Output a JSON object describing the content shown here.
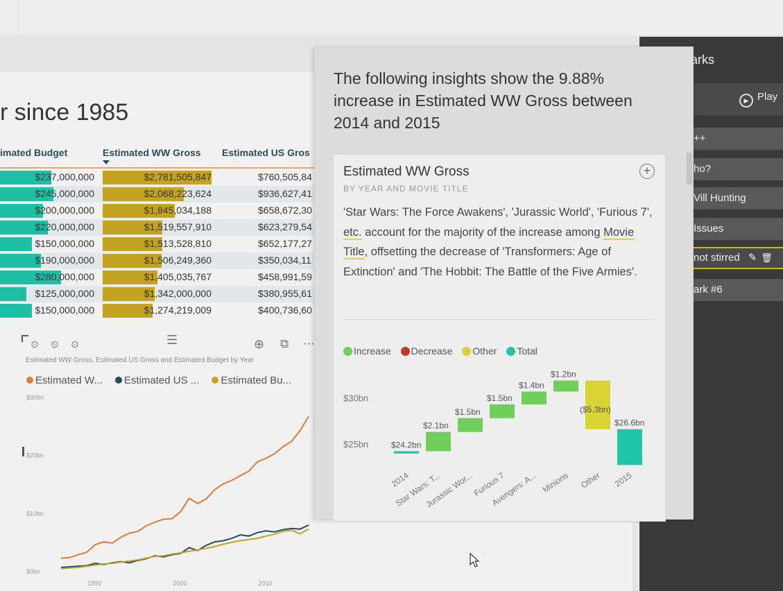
{
  "report": {
    "page_title": "r since 1985",
    "table": {
      "headers": [
        "imated Budget",
        "Estimated WW Gross",
        "Estimated US Gros"
      ],
      "rows": [
        {
          "budget": "$237,000,000",
          "ww": "$2,781,505,847",
          "us": "$760,505,84"
        },
        {
          "budget": "$245,000,000",
          "ww": "$2,068,223,624",
          "us": "$936,627,41"
        },
        {
          "budget": "$200,000,000",
          "ww": "$1,845,034,188",
          "us": "$658,672,30"
        },
        {
          "budget": "$220,000,000",
          "ww": "$1,519,557,910",
          "us": "$623,279,54"
        },
        {
          "budget": "$150,000,000",
          "ww": "$1,513,528,810",
          "us": "$652,177,27"
        },
        {
          "budget": "$190,000,000",
          "ww": "$1,506,249,360",
          "us": "$350,034,11"
        },
        {
          "budget": "$280,000,000",
          "ww": "$1,405,035,767",
          "us": "$458,991,59"
        },
        {
          "budget": "$125,000,000",
          "ww": "$1,342,000,000",
          "us": "$380,955,61"
        },
        {
          "budget": "$150,000,000",
          "ww": "$1,274,219,009",
          "us": "$400,736,60"
        }
      ],
      "budget_bar_fractions": [
        0.29,
        0.3,
        0.245,
        0.27,
        0.18,
        0.23,
        0.345,
        0.15,
        0.18
      ],
      "ww_bar_fractions": [
        1.0,
        0.745,
        0.665,
        0.545,
        0.545,
        0.54,
        0.505,
        0.48,
        0.46
      ]
    },
    "line_chart": {
      "subtitle": "Estimated WW Gross, Estimated US Gross and Estimated Budget by Year",
      "legend": [
        {
          "label": "Estimated W...",
          "color": "#e07b39"
        },
        {
          "label": "Estimated US ...",
          "color": "#1f4e5a"
        },
        {
          "label": "Estimated Bu...",
          "color": "#c2a322"
        }
      ]
    }
  },
  "bookmarks": {
    "title": "arks",
    "play_label": "Play",
    "items": [
      "++",
      "ho?",
      "Vill Hunting",
      "Issues",
      "not stirred",
      "ark #6"
    ],
    "active_index": 4
  },
  "insights": {
    "heading": "The following insights show the 9.88% increase in Estimated WW Gross between 2014 and 2015",
    "card": {
      "title": "Estimated WW Gross",
      "subtitle": "BY YEAR AND MOVIE TITLE",
      "desc_parts": [
        "'Star Wars: The Force Awakens', 'Jurassic World', 'Furious 7', ",
        "etc.",
        " account for the majority of the increase among ",
        "Movie Title",
        ", offsetting the decrease of 'Transformers: Age of Extinction' and 'The Hobbit: The Battle of the Five Armies'."
      ]
    }
  },
  "chart_data": [
    {
      "type": "line",
      "title": "Estimated WW Gross, Estimated US Gross and Estimated Budget by Year",
      "xlabel": "",
      "ylabel": "",
      "x_ticks": [
        1990,
        2000,
        2010
      ],
      "y_ticks": [
        "$0bn",
        "$10bn",
        "$20bn",
        "$30bn"
      ],
      "ylim": [
        0,
        30
      ],
      "xlim": [
        1985,
        2015
      ],
      "series": [
        {
          "name": "Estimated W...",
          "color": "#e07b39",
          "x": [
            1986,
            1987,
            1988,
            1989,
            1990,
            1991,
            1992,
            1993,
            1994,
            1995,
            1996,
            1997,
            1998,
            1999,
            2000,
            2001,
            2002,
            2003,
            2004,
            2005,
            2006,
            2007,
            2008,
            2009,
            2010,
            2011,
            2012,
            2013,
            2014,
            2015
          ],
          "values": [
            2.2,
            2.3,
            2.8,
            3.2,
            4.5,
            5.0,
            4.8,
            5.8,
            6.5,
            6.8,
            7.8,
            8.4,
            8.9,
            9.0,
            10.2,
            12.5,
            11.6,
            12.4,
            14.0,
            15.0,
            15.6,
            16.4,
            17.2,
            18.8,
            19.4,
            20.2,
            21.4,
            22.3,
            24.2,
            26.6
          ]
        },
        {
          "name": "Estimated US ...",
          "color": "#1f4e5a",
          "x": [
            1986,
            1987,
            1988,
            1989,
            1990,
            1991,
            1992,
            1993,
            1994,
            1995,
            1996,
            1997,
            1998,
            1999,
            2000,
            2001,
            2002,
            2003,
            2004,
            2005,
            2006,
            2007,
            2008,
            2009,
            2010,
            2011,
            2012,
            2013,
            2014,
            2015
          ],
          "values": [
            0.6,
            0.7,
            0.8,
            0.9,
            1.3,
            1.1,
            1.4,
            1.6,
            1.4,
            1.8,
            2.1,
            2.6,
            2.4,
            2.8,
            3.0,
            4.0,
            3.5,
            4.4,
            5.0,
            5.2,
            5.6,
            6.2,
            6.0,
            6.6,
            6.9,
            6.7,
            7.1,
            7.3,
            7.2,
            7.9
          ]
        },
        {
          "name": "Estimated Bu...",
          "color": "#c2a322",
          "x": [
            1986,
            1987,
            1988,
            1989,
            1990,
            1991,
            1992,
            1993,
            1994,
            1995,
            1996,
            1997,
            1998,
            1999,
            2000,
            2001,
            2002,
            2003,
            2004,
            2005,
            2006,
            2007,
            2008,
            2009,
            2010,
            2011,
            2012,
            2013,
            2014,
            2015
          ],
          "values": [
            0.4,
            0.5,
            0.6,
            0.8,
            1.0,
            1.2,
            1.3,
            1.5,
            1.7,
            1.9,
            2.2,
            2.5,
            2.6,
            2.9,
            3.1,
            3.4,
            3.6,
            3.9,
            4.2,
            4.6,
            4.9,
            5.2,
            5.4,
            5.6,
            6.0,
            6.3,
            6.8,
            7.0,
            6.4,
            7.2
          ]
        }
      ]
    },
    {
      "type": "waterfall",
      "title": "Estimated WW Gross",
      "subtitle": "BY YEAR AND MOVIE TITLE",
      "categories": [
        "2014",
        "Star Wars: T...",
        "Jurassic Wor...",
        "Furious 7",
        "Avengers: A...",
        "Minions",
        "Other",
        "2015"
      ],
      "values": [
        24.2,
        2.1,
        1.5,
        1.5,
        1.4,
        1.2,
        -5.3,
        26.6
      ],
      "kinds": [
        "total",
        "increase",
        "increase",
        "increase",
        "increase",
        "increase",
        "other",
        "total"
      ],
      "labels": [
        "$24.2bn",
        "$2.1bn",
        "$1.5bn",
        "$1.5bn",
        "$1.4bn",
        "$1.2bn",
        "($5.3bn)",
        "$26.6bn"
      ],
      "legend": [
        {
          "name": "Increase",
          "color": "#6fcf5a"
        },
        {
          "name": "Decrease",
          "color": "#c0392b"
        },
        {
          "name": "Other",
          "color": "#d9d334"
        },
        {
          "name": "Total",
          "color": "#20c4a8"
        }
      ],
      "y_ticks": [
        "$25bn",
        "$30bn"
      ],
      "ylim": [
        22.5,
        33
      ]
    }
  ]
}
